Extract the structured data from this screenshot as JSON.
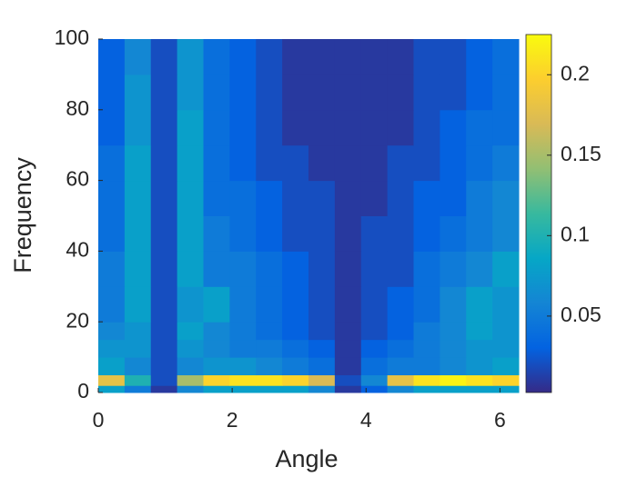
{
  "chart_data": {
    "type": "heatmap",
    "x_label": "Angle",
    "y_label": "Frequency",
    "xbins": [
      0,
      0.3925,
      0.785,
      1.1775,
      1.57,
      1.9625,
      2.355,
      2.7475,
      3.14,
      3.5325,
      3.925,
      4.3175,
      4.71,
      5.1025,
      5.495,
      5.8875,
      6.28
    ],
    "ybins": [
      0,
      2,
      5,
      10,
      15,
      20,
      30,
      40,
      50,
      60,
      70,
      80,
      90,
      100
    ],
    "z": [
      [
        0.08,
        0.05,
        0.01,
        0.06,
        0.08,
        0.08,
        0.08,
        0.08,
        0.06,
        0.01,
        0.03,
        0.06,
        0.08,
        0.08,
        0.08,
        0.08
      ],
      [
        0.18,
        0.1,
        0.02,
        0.15,
        0.2,
        0.21,
        0.21,
        0.2,
        0.17,
        0.02,
        0.06,
        0.18,
        0.21,
        0.22,
        0.21,
        0.2
      ],
      [
        0.08,
        0.06,
        0.02,
        0.06,
        0.07,
        0.07,
        0.06,
        0.05,
        0.04,
        0.01,
        0.04,
        0.05,
        0.05,
        0.06,
        0.07,
        0.08
      ],
      [
        0.07,
        0.07,
        0.02,
        0.07,
        0.06,
        0.05,
        0.05,
        0.04,
        0.03,
        0.01,
        0.03,
        0.04,
        0.05,
        0.06,
        0.07,
        0.07
      ],
      [
        0.06,
        0.07,
        0.02,
        0.08,
        0.06,
        0.05,
        0.04,
        0.03,
        0.02,
        0.01,
        0.02,
        0.03,
        0.05,
        0.06,
        0.08,
        0.07
      ],
      [
        0.05,
        0.08,
        0.02,
        0.07,
        0.08,
        0.05,
        0.04,
        0.03,
        0.02,
        0.01,
        0.02,
        0.03,
        0.04,
        0.06,
        0.08,
        0.07
      ],
      [
        0.05,
        0.08,
        0.02,
        0.08,
        0.05,
        0.05,
        0.04,
        0.03,
        0.02,
        0.01,
        0.02,
        0.02,
        0.04,
        0.05,
        0.06,
        0.08
      ],
      [
        0.04,
        0.08,
        0.02,
        0.08,
        0.05,
        0.04,
        0.03,
        0.02,
        0.02,
        0.01,
        0.02,
        0.02,
        0.03,
        0.04,
        0.05,
        0.06
      ],
      [
        0.04,
        0.08,
        0.02,
        0.08,
        0.04,
        0.04,
        0.03,
        0.02,
        0.02,
        0.01,
        0.01,
        0.02,
        0.03,
        0.03,
        0.05,
        0.06
      ],
      [
        0.04,
        0.08,
        0.02,
        0.08,
        0.04,
        0.03,
        0.02,
        0.02,
        0.01,
        0.01,
        0.01,
        0.02,
        0.02,
        0.03,
        0.04,
        0.05
      ],
      [
        0.03,
        0.07,
        0.02,
        0.08,
        0.04,
        0.03,
        0.02,
        0.01,
        0.01,
        0.01,
        0.01,
        0.01,
        0.02,
        0.03,
        0.04,
        0.04
      ],
      [
        0.03,
        0.07,
        0.02,
        0.07,
        0.04,
        0.03,
        0.02,
        0.01,
        0.01,
        0.01,
        0.01,
        0.01,
        0.02,
        0.02,
        0.03,
        0.04
      ],
      [
        0.03,
        0.06,
        0.02,
        0.07,
        0.04,
        0.03,
        0.02,
        0.01,
        0.01,
        0.01,
        0.01,
        0.01,
        0.02,
        0.02,
        0.03,
        0.04
      ]
    ],
    "xlim": [
      0,
      6.28
    ],
    "ylim": [
      0,
      100
    ],
    "xticks": [
      0,
      2,
      4,
      6
    ],
    "yticks": [
      0,
      20,
      40,
      60,
      80,
      100
    ],
    "clim": [
      0.0025,
      0.225
    ],
    "cticks": [
      0.05,
      0.1,
      0.15,
      0.2
    ],
    "colormap": "parula"
  }
}
